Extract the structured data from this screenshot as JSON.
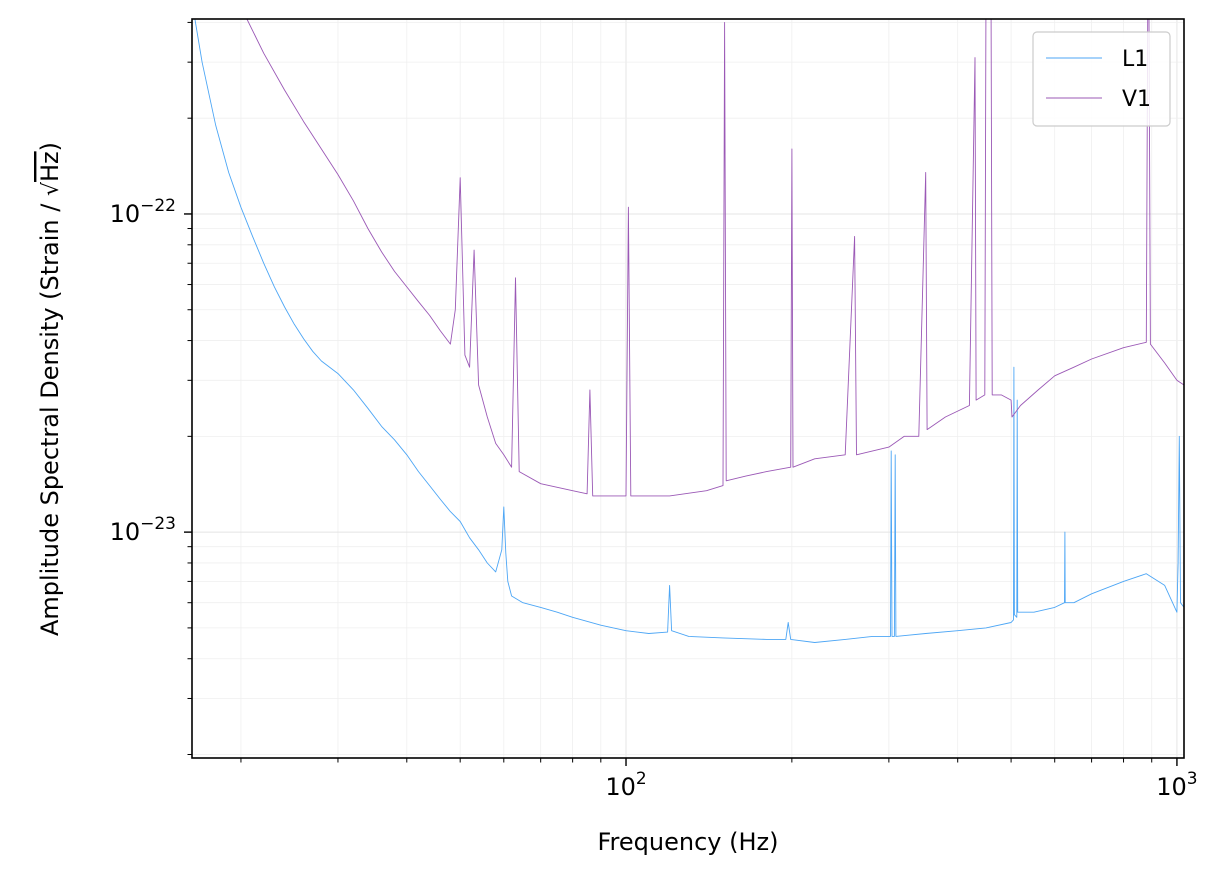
{
  "chart_data": {
    "type": "line",
    "xlabel": "Frequency (Hz)",
    "ylabel_main": "Amplitude Spectral Density (Strain / ",
    "ylabel_sqrt": "Hz",
    "ylabel_close": ")",
    "x_scale": "log",
    "y_scale": "log",
    "xlim": [
      16.3,
      1030
    ],
    "ylim": [
      1.95e-24,
      4.1e-22
    ],
    "grid": true,
    "legend_position": "top-right",
    "x_ticks": [
      {
        "value": 100,
        "base": "10",
        "exp": "2"
      },
      {
        "value": 1000,
        "base": "10",
        "exp": "3"
      }
    ],
    "y_ticks": [
      {
        "value": 1e-23,
        "base": "10",
        "exp": "−23"
      },
      {
        "value": 1e-22,
        "base": "10",
        "exp": "−22"
      }
    ],
    "series": [
      {
        "name": "L1",
        "color": "#4da6f5",
        "points": [
          [
            16.5,
            4.1e-22
          ],
          [
            17,
            3e-22
          ],
          [
            18,
            1.9e-22
          ],
          [
            19,
            1.35e-22
          ],
          [
            20,
            1.05e-22
          ],
          [
            21,
            8.5e-23
          ],
          [
            22,
            7e-23
          ],
          [
            23,
            5.9e-23
          ],
          [
            24,
            5.1e-23
          ],
          [
            25,
            4.5e-23
          ],
          [
            26,
            4.05e-23
          ],
          [
            27,
            3.7e-23
          ],
          [
            28,
            3.45e-23
          ],
          [
            30,
            3.15e-23
          ],
          [
            32,
            2.8e-23
          ],
          [
            34,
            2.45e-23
          ],
          [
            36,
            2.15e-23
          ],
          [
            38,
            1.95e-23
          ],
          [
            40,
            1.75e-23
          ],
          [
            42,
            1.55e-23
          ],
          [
            44,
            1.4e-23
          ],
          [
            46,
            1.27e-23
          ],
          [
            48,
            1.16e-23
          ],
          [
            50,
            1.08e-23
          ],
          [
            52,
            9.6e-24
          ],
          [
            54,
            8.8e-24
          ],
          [
            56,
            8e-24
          ],
          [
            58,
            7.5e-24
          ],
          [
            59.5,
            8.8e-24
          ],
          [
            60,
            1.2e-23
          ],
          [
            60.5,
            8.6e-24
          ],
          [
            61,
            7e-24
          ],
          [
            62,
            6.3e-24
          ],
          [
            65,
            6e-24
          ],
          [
            70,
            5.8e-24
          ],
          [
            75,
            5.6e-24
          ],
          [
            80,
            5.4e-24
          ],
          [
            90,
            5.1e-24
          ],
          [
            100,
            4.9e-24
          ],
          [
            110,
            4.8e-24
          ],
          [
            119,
            4.85e-24
          ],
          [
            120,
            6.8e-24
          ],
          [
            121,
            4.9e-24
          ],
          [
            130,
            4.7e-24
          ],
          [
            150,
            4.65e-24
          ],
          [
            180,
            4.6e-24
          ],
          [
            195,
            4.6e-24
          ],
          [
            197,
            5.2e-24
          ],
          [
            199,
            4.6e-24
          ],
          [
            220,
            4.5e-24
          ],
          [
            250,
            4.6e-24
          ],
          [
            280,
            4.7e-24
          ],
          [
            302,
            4.7e-24
          ],
          [
            303,
            1.8e-23
          ],
          [
            304,
            4.7e-24
          ],
          [
            307,
            4.7e-24
          ],
          [
            308,
            1.75e-23
          ],
          [
            309,
            4.7e-24
          ],
          [
            350,
            4.8e-24
          ],
          [
            400,
            4.9e-24
          ],
          [
            450,
            5e-24
          ],
          [
            500,
            5.2e-24
          ],
          [
            505,
            5.3e-24
          ],
          [
            506,
            3.3e-23
          ],
          [
            507,
            5.5e-24
          ],
          [
            512,
            5.4e-24
          ],
          [
            513,
            2.6e-23
          ],
          [
            514,
            5.6e-24
          ],
          [
            550,
            5.6e-24
          ],
          [
            600,
            5.8e-24
          ],
          [
            625,
            6e-24
          ],
          [
            626,
            1e-23
          ],
          [
            627,
            6e-24
          ],
          [
            650,
            6e-24
          ],
          [
            700,
            6.4e-24
          ],
          [
            800,
            7e-24
          ],
          [
            880,
            7.4e-24
          ],
          [
            950,
            6.8e-24
          ],
          [
            1000,
            5.6e-24
          ],
          [
            1005,
            8e-24
          ],
          [
            1010,
            2e-23
          ],
          [
            1015,
            6e-24
          ],
          [
            1030,
            5.8e-24
          ]
        ]
      },
      {
        "name": "V1",
        "color": "#9b59b6",
        "points": [
          [
            20.5,
            4.1e-22
          ],
          [
            22,
            3.2e-22
          ],
          [
            24,
            2.45e-22
          ],
          [
            26,
            1.95e-22
          ],
          [
            28,
            1.6e-22
          ],
          [
            30,
            1.33e-22
          ],
          [
            32,
            1.1e-22
          ],
          [
            34,
            9e-23
          ],
          [
            36,
            7.6e-23
          ],
          [
            38,
            6.6e-23
          ],
          [
            40,
            5.9e-23
          ],
          [
            42,
            5.3e-23
          ],
          [
            44,
            4.8e-23
          ],
          [
            46,
            4.3e-23
          ],
          [
            48,
            3.9e-23
          ],
          [
            49,
            5e-23
          ],
          [
            50,
            1.3e-22
          ],
          [
            51,
            3.6e-23
          ],
          [
            52,
            3.3e-23
          ],
          [
            53,
            7.7e-23
          ],
          [
            54,
            2.9e-23
          ],
          [
            56,
            2.3e-23
          ],
          [
            58,
            1.9e-23
          ],
          [
            60,
            1.75e-23
          ],
          [
            62,
            1.6e-23
          ],
          [
            63,
            6.3e-23
          ],
          [
            64,
            1.55e-23
          ],
          [
            70,
            1.42e-23
          ],
          [
            80,
            1.35e-23
          ],
          [
            85,
            1.32e-23
          ],
          [
            86,
            2.8e-23
          ],
          [
            87,
            1.3e-23
          ],
          [
            100,
            1.3e-23
          ],
          [
            101,
            1.05e-22
          ],
          [
            102,
            1.3e-23
          ],
          [
            120,
            1.3e-23
          ],
          [
            140,
            1.35e-23
          ],
          [
            150,
            1.4e-23
          ],
          [
            151,
            4e-22
          ],
          [
            152,
            1.45e-23
          ],
          [
            165,
            1.5e-23
          ],
          [
            180,
            1.55e-23
          ],
          [
            199,
            1.6e-23
          ],
          [
            200,
            1.6e-22
          ],
          [
            201,
            1.6e-23
          ],
          [
            220,
            1.7e-23
          ],
          [
            250,
            1.75e-23
          ],
          [
            260,
            8.5e-23
          ],
          [
            262,
            1.75e-23
          ],
          [
            300,
            1.85e-23
          ],
          [
            320,
            2e-23
          ],
          [
            340,
            2e-23
          ],
          [
            350,
            1.35e-22
          ],
          [
            352,
            2.1e-23
          ],
          [
            380,
            2.3e-23
          ],
          [
            420,
            2.5e-23
          ],
          [
            430,
            3.1e-22
          ],
          [
            432,
            2.6e-23
          ],
          [
            448,
            2.7e-23
          ],
          [
            450,
            4.1e-22
          ],
          [
            460,
            4.1e-22
          ],
          [
            462,
            2.7e-23
          ],
          [
            480,
            2.7e-23
          ],
          [
            500,
            2.6e-23
          ],
          [
            502,
            2.3e-23
          ],
          [
            520,
            2.5e-23
          ],
          [
            560,
            2.8e-23
          ],
          [
            600,
            3.1e-23
          ],
          [
            650,
            3.3e-23
          ],
          [
            700,
            3.5e-23
          ],
          [
            800,
            3.8e-23
          ],
          [
            880,
            3.95e-23
          ],
          [
            885,
            4.1e-22
          ],
          [
            890,
            4.1e-22
          ],
          [
            895,
            3.9e-23
          ],
          [
            950,
            3.4e-23
          ],
          [
            1000,
            3e-23
          ],
          [
            1030,
            2.9e-23
          ]
        ]
      }
    ]
  }
}
